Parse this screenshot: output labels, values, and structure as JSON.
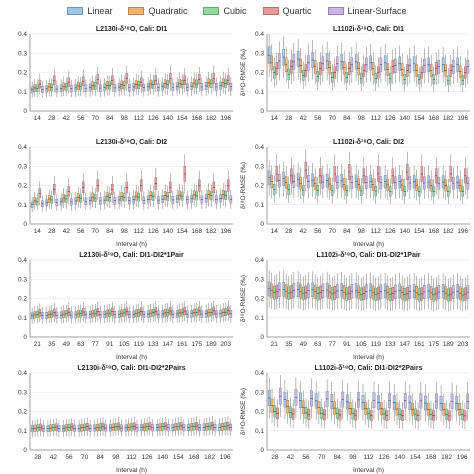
{
  "colors": {
    "Linear": "#9fc5e8",
    "Quadratic": "#f6b26b",
    "Cubic": "#93d8a0",
    "Quartic": "#ea9999",
    "Linear-Surface": "#c9b5e8"
  },
  "legend": [
    "Linear",
    "Quadratic",
    "Cubic",
    "Quartic",
    "Linear-Surface"
  ],
  "chart_data": [
    {
      "type": "box",
      "title": "L2130i-δ¹⁸O, Cali: DI1",
      "xlabel": "",
      "ylabel": "",
      "ylim": [
        0,
        0.4
      ],
      "yticks": [
        "0",
        "0.1",
        "0.2",
        "0.3",
        "0.4"
      ],
      "categories": [
        "14",
        "28",
        "42",
        "56",
        "70",
        "84",
        "98",
        "112",
        "126",
        "140",
        "154",
        "168",
        "182",
        "196"
      ],
      "series": [
        {
          "name": "Linear",
          "values": [
            0.11,
            0.115,
            0.118,
            0.12,
            0.122,
            0.123,
            0.124,
            0.125,
            0.126,
            0.127,
            0.128,
            0.129,
            0.13,
            0.131
          ]
        },
        {
          "name": "Quadratic",
          "values": [
            0.12,
            0.125,
            0.128,
            0.13,
            0.132,
            0.134,
            0.136,
            0.138,
            0.14,
            0.142,
            0.144,
            0.145,
            0.146,
            0.147
          ]
        },
        {
          "name": "Cubic",
          "values": [
            0.118,
            0.122,
            0.125,
            0.128,
            0.13,
            0.132,
            0.133,
            0.135,
            0.136,
            0.138,
            0.139,
            0.14,
            0.141,
            0.142
          ]
        },
        {
          "name": "Quartic",
          "values": [
            0.14,
            0.16,
            0.15,
            0.155,
            0.165,
            0.16,
            0.17,
            0.15,
            0.16,
            0.17,
            0.16,
            0.165,
            0.17,
            0.16
          ]
        },
        {
          "name": "Linear-Surface",
          "values": [
            0.112,
            0.114,
            0.116,
            0.118,
            0.119,
            0.12,
            0.121,
            0.122,
            0.123,
            0.124,
            0.124,
            0.125,
            0.125,
            0.126
          ]
        }
      ]
    },
    {
      "type": "box",
      "title": "L1102i-δ¹⁸O, Cali: DI1",
      "xlabel": "",
      "ylabel": "δ¹⁸O-RMSE (‰)",
      "ylim": [
        0,
        0.4
      ],
      "yticks": [
        "0",
        "0.1",
        "0.2",
        "0.3",
        "0.4"
      ],
      "categories": [
        "14",
        "28",
        "42",
        "56",
        "70",
        "84",
        "98",
        "112",
        "126",
        "140",
        "154",
        "168",
        "182",
        "196"
      ],
      "series": [
        {
          "name": "Linear",
          "values": [
            0.29,
            0.28,
            0.27,
            0.265,
            0.26,
            0.255,
            0.255,
            0.25,
            0.25,
            0.245,
            0.245,
            0.24,
            0.24,
            0.24
          ]
        },
        {
          "name": "Quadratic",
          "values": [
            0.25,
            0.24,
            0.235,
            0.23,
            0.225,
            0.225,
            0.22,
            0.22,
            0.215,
            0.215,
            0.21,
            0.21,
            0.21,
            0.205
          ]
        },
        {
          "name": "Cubic",
          "values": [
            0.2,
            0.19,
            0.185,
            0.18,
            0.175,
            0.175,
            0.17,
            0.17,
            0.17,
            0.165,
            0.165,
            0.165,
            0.16,
            0.16
          ]
        },
        {
          "name": "Quartic",
          "values": [
            0.22,
            0.23,
            0.21,
            0.22,
            0.2,
            0.22,
            0.21,
            0.2,
            0.23,
            0.21,
            0.2,
            0.22,
            0.21,
            0.2
          ]
        },
        {
          "name": "Linear-Surface",
          "values": [
            0.26,
            0.255,
            0.25,
            0.245,
            0.245,
            0.24,
            0.24,
            0.24,
            0.235,
            0.235,
            0.235,
            0.23,
            0.23,
            0.23
          ]
        }
      ]
    },
    {
      "type": "box",
      "title": "L2130i-δ¹⁸O, Cali: DI2",
      "xlabel": "Interval (h)",
      "ylabel": "",
      "ylim": [
        0,
        0.4
      ],
      "yticks": [
        "0",
        "0.1",
        "0.2",
        "0.3",
        "0.4"
      ],
      "categories": [
        "14",
        "28",
        "42",
        "56",
        "70",
        "84",
        "98",
        "112",
        "126",
        "140",
        "154",
        "168",
        "182",
        "196"
      ],
      "series": [
        {
          "name": "Linear",
          "values": [
            0.1,
            0.11,
            0.115,
            0.12,
            0.122,
            0.124,
            0.125,
            0.126,
            0.128,
            0.129,
            0.13,
            0.131,
            0.132,
            0.133
          ]
        },
        {
          "name": "Quadratic",
          "values": [
            0.12,
            0.13,
            0.135,
            0.138,
            0.14,
            0.142,
            0.144,
            0.145,
            0.147,
            0.148,
            0.15,
            0.151,
            0.152,
            0.153
          ]
        },
        {
          "name": "Cubic",
          "values": [
            0.115,
            0.125,
            0.13,
            0.132,
            0.135,
            0.137,
            0.139,
            0.14,
            0.142,
            0.143,
            0.145,
            0.146,
            0.147,
            0.148
          ]
        },
        {
          "name": "Quartic",
          "values": [
            0.16,
            0.18,
            0.17,
            0.19,
            0.2,
            0.18,
            0.19,
            0.2,
            0.21,
            0.19,
            0.26,
            0.2,
            0.19,
            0.2
          ]
        },
        {
          "name": "Linear-Surface",
          "values": [
            0.105,
            0.112,
            0.115,
            0.118,
            0.12,
            0.121,
            0.122,
            0.123,
            0.124,
            0.125,
            0.126,
            0.127,
            0.128,
            0.128
          ]
        }
      ]
    },
    {
      "type": "box",
      "title": "L1102i-δ¹⁸O, Cali: DI2",
      "xlabel": "Interval (h)",
      "ylabel": "δ¹⁸O-RMSE (‰)",
      "ylim": [
        0,
        0.4
      ],
      "yticks": [
        "0",
        "0.1",
        "0.2",
        "0.3",
        "0.4"
      ],
      "categories": [
        "14",
        "28",
        "42",
        "56",
        "70",
        "84",
        "98",
        "112",
        "126",
        "140",
        "154",
        "168",
        "182",
        "196"
      ],
      "series": [
        {
          "name": "Linear",
          "values": [
            0.24,
            0.235,
            0.23,
            0.228,
            0.225,
            0.224,
            0.222,
            0.221,
            0.22,
            0.22,
            0.219,
            0.218,
            0.218,
            0.217
          ]
        },
        {
          "name": "Quadratic",
          "values": [
            0.22,
            0.215,
            0.212,
            0.21,
            0.208,
            0.206,
            0.205,
            0.204,
            0.203,
            0.202,
            0.202,
            0.201,
            0.201,
            0.2
          ]
        },
        {
          "name": "Cubic",
          "values": [
            0.18,
            0.178,
            0.176,
            0.175,
            0.174,
            0.173,
            0.172,
            0.171,
            0.17,
            0.17,
            0.169,
            0.169,
            0.168,
            0.168
          ]
        },
        {
          "name": "Quartic",
          "values": [
            0.26,
            0.25,
            0.28,
            0.25,
            0.26,
            0.27,
            0.25,
            0.26,
            0.25,
            0.27,
            0.26,
            0.25,
            0.26,
            0.25
          ]
        },
        {
          "name": "Linear-Surface",
          "values": [
            0.225,
            0.222,
            0.22,
            0.218,
            0.217,
            0.216,
            0.215,
            0.214,
            0.214,
            0.213,
            0.213,
            0.212,
            0.212,
            0.212
          ]
        }
      ]
    },
    {
      "type": "box",
      "title": "L2130i-δ¹⁸O, Cali: DI1-DI2*1Pair",
      "xlabel": "Interval (h)",
      "ylabel": "",
      "ylim": [
        0,
        0.4
      ],
      "yticks": [
        "0",
        "0.1",
        "0.2",
        "0.3",
        "0.4"
      ],
      "categories": [
        "21",
        "35",
        "49",
        "63",
        "77",
        "91",
        "105",
        "119",
        "133",
        "147",
        "161",
        "175",
        "189",
        "203"
      ],
      "series": [
        {
          "name": "Linear",
          "values": [
            0.11,
            0.112,
            0.114,
            0.115,
            0.116,
            0.117,
            0.118,
            0.118,
            0.119,
            0.12,
            0.12,
            0.121,
            0.121,
            0.122
          ]
        },
        {
          "name": "Quadratic",
          "values": [
            0.115,
            0.117,
            0.119,
            0.12,
            0.121,
            0.122,
            0.123,
            0.123,
            0.124,
            0.125,
            0.125,
            0.126,
            0.126,
            0.127
          ]
        },
        {
          "name": "Cubic",
          "values": [
            0.117,
            0.119,
            0.121,
            0.122,
            0.123,
            0.124,
            0.125,
            0.125,
            0.126,
            0.127,
            0.127,
            0.128,
            0.128,
            0.129
          ]
        },
        {
          "name": "Quartic",
          "values": [
            0.125,
            0.127,
            0.129,
            0.13,
            0.131,
            0.132,
            0.133,
            0.133,
            0.134,
            0.135,
            0.135,
            0.136,
            0.136,
            0.137
          ]
        },
        {
          "name": "Linear-Surface",
          "values": [
            0.112,
            0.113,
            0.114,
            0.115,
            0.116,
            0.116,
            0.117,
            0.117,
            0.118,
            0.118,
            0.119,
            0.119,
            0.12,
            0.12
          ]
        }
      ]
    },
    {
      "type": "box",
      "title": "L1102i-δ¹⁸O, Cali: DI1-DI2*1Pair",
      "xlabel": "Interval (h)",
      "ylabel": "δ¹⁸O-RMSE (‰)",
      "ylim": [
        0,
        0.4
      ],
      "yticks": [
        "0",
        "0.1",
        "0.2",
        "0.3",
        "0.4"
      ],
      "categories": [
        "21",
        "35",
        "49",
        "63",
        "77",
        "91",
        "105",
        "119",
        "133",
        "147",
        "161",
        "175",
        "189",
        "203"
      ],
      "series": [
        {
          "name": "Linear",
          "values": [
            0.25,
            0.248,
            0.246,
            0.245,
            0.244,
            0.243,
            0.242,
            0.241,
            0.24,
            0.24,
            0.239,
            0.239,
            0.238,
            0.238
          ]
        },
        {
          "name": "Quadratic",
          "values": [
            0.24,
            0.238,
            0.236,
            0.235,
            0.234,
            0.233,
            0.232,
            0.231,
            0.23,
            0.23,
            0.229,
            0.229,
            0.228,
            0.228
          ]
        },
        {
          "name": "Cubic",
          "values": [
            0.23,
            0.228,
            0.226,
            0.225,
            0.224,
            0.223,
            0.222,
            0.221,
            0.22,
            0.22,
            0.219,
            0.219,
            0.218,
            0.218
          ]
        },
        {
          "name": "Quartic",
          "values": [
            0.235,
            0.233,
            0.231,
            0.23,
            0.229,
            0.228,
            0.227,
            0.226,
            0.225,
            0.225,
            0.224,
            0.224,
            0.223,
            0.223
          ]
        },
        {
          "name": "Linear-Surface",
          "values": [
            0.245,
            0.243,
            0.241,
            0.24,
            0.239,
            0.238,
            0.237,
            0.236,
            0.235,
            0.235,
            0.234,
            0.234,
            0.233,
            0.233
          ]
        }
      ]
    },
    {
      "type": "box",
      "title": "L2130i-δ¹⁸O, Cali: DI1-DI2*2Pairs",
      "xlabel": "Interval (h)",
      "ylabel": "",
      "ylim": [
        0,
        0.4
      ],
      "yticks": [
        "0",
        "0.1",
        "0.2",
        "0.3",
        "0.4"
      ],
      "categories": [
        "28",
        "42",
        "56",
        "70",
        "84",
        "98",
        "112",
        "126",
        "140",
        "154",
        "168",
        "182",
        "196"
      ],
      "series": [
        {
          "name": "Linear",
          "values": [
            0.11,
            0.111,
            0.112,
            0.113,
            0.114,
            0.115,
            0.115,
            0.116,
            0.116,
            0.117,
            0.117,
            0.118,
            0.118
          ]
        },
        {
          "name": "Quadratic",
          "values": [
            0.113,
            0.114,
            0.115,
            0.116,
            0.117,
            0.118,
            0.118,
            0.119,
            0.119,
            0.12,
            0.12,
            0.121,
            0.121
          ]
        },
        {
          "name": "Cubic",
          "values": [
            0.115,
            0.116,
            0.117,
            0.118,
            0.119,
            0.12,
            0.12,
            0.121,
            0.121,
            0.122,
            0.122,
            0.123,
            0.123
          ]
        },
        {
          "name": "Quartic",
          "values": [
            0.118,
            0.119,
            0.12,
            0.121,
            0.122,
            0.123,
            0.123,
            0.124,
            0.124,
            0.125,
            0.125,
            0.126,
            0.126
          ]
        },
        {
          "name": "Linear-Surface",
          "values": [
            0.111,
            0.112,
            0.113,
            0.113,
            0.114,
            0.114,
            0.115,
            0.115,
            0.116,
            0.116,
            0.117,
            0.117,
            0.117
          ]
        }
      ]
    },
    {
      "type": "box",
      "title": "L1102i-δ¹⁸O, Cali: DI1-DI2*2Pairs",
      "xlabel": "Interval (h)",
      "ylabel": "δ¹⁸O-RMSE (‰)",
      "ylim": [
        0,
        0.4
      ],
      "yticks": [
        "0",
        "0.1",
        "0.2",
        "0.3",
        "0.4"
      ],
      "categories": [
        "28",
        "42",
        "56",
        "70",
        "84",
        "98",
        "112",
        "126",
        "140",
        "154",
        "168",
        "182",
        "196"
      ],
      "series": [
        {
          "name": "Linear",
          "values": [
            0.27,
            0.262,
            0.258,
            0.255,
            0.252,
            0.25,
            0.248,
            0.247,
            0.246,
            0.245,
            0.244,
            0.243,
            0.243
          ]
        },
        {
          "name": "Quadratic",
          "values": [
            0.23,
            0.225,
            0.222,
            0.22,
            0.218,
            0.216,
            0.215,
            0.214,
            0.213,
            0.212,
            0.212,
            0.211,
            0.211
          ]
        },
        {
          "name": "Cubic",
          "values": [
            0.2,
            0.196,
            0.193,
            0.191,
            0.19,
            0.189,
            0.188,
            0.187,
            0.186,
            0.186,
            0.185,
            0.185,
            0.184
          ]
        },
        {
          "name": "Quartic",
          "values": [
            0.19,
            0.187,
            0.185,
            0.183,
            0.182,
            0.181,
            0.18,
            0.179,
            0.179,
            0.178,
            0.178,
            0.177,
            0.177
          ]
        },
        {
          "name": "Linear-Surface",
          "values": [
            0.28,
            0.272,
            0.268,
            0.265,
            0.262,
            0.26,
            0.258,
            0.257,
            0.256,
            0.255,
            0.254,
            0.253,
            0.253
          ]
        }
      ]
    }
  ]
}
